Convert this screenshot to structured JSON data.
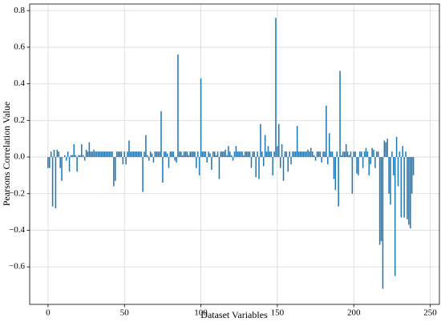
{
  "chart_data": {
    "type": "bar",
    "xlabel": "Dataset Variables",
    "ylabel": "Pearsons Correlation Value",
    "color": "#1f77b4",
    "grid": true,
    "xlim": [
      -12,
      256
    ],
    "ylim": [
      -0.805,
      0.836
    ],
    "xticks": [
      0,
      50,
      100,
      150,
      200,
      250
    ],
    "yticks": [
      {
        "value": -0.6,
        "label": "−0.6"
      },
      {
        "value": -0.4,
        "label": "−0.4"
      },
      {
        "value": -0.2,
        "label": "−0.2"
      },
      {
        "value": 0,
        "label": "0.0"
      },
      0.2,
      0.4,
      0.6,
      0.8
    ],
    "x": [
      0,
      1,
      2,
      3,
      4,
      5,
      6,
      7,
      8,
      9,
      10,
      11,
      12,
      13,
      14,
      15,
      16,
      17,
      18,
      19,
      20,
      21,
      22,
      23,
      24,
      25,
      26,
      27,
      28,
      29,
      30,
      31,
      32,
      33,
      34,
      35,
      36,
      37,
      38,
      39,
      40,
      41,
      42,
      43,
      44,
      45,
      46,
      47,
      48,
      49,
      50,
      51,
      52,
      53,
      54,
      55,
      56,
      57,
      58,
      59,
      60,
      61,
      62,
      63,
      64,
      65,
      66,
      67,
      68,
      69,
      70,
      71,
      72,
      73,
      74,
      75,
      76,
      77,
      78,
      79,
      80,
      81,
      82,
      83,
      84,
      85,
      86,
      87,
      88,
      89,
      90,
      91,
      92,
      93,
      94,
      95,
      96,
      97,
      98,
      99,
      100,
      101,
      102,
      103,
      104,
      105,
      106,
      107,
      108,
      109,
      110,
      111,
      112,
      113,
      114,
      115,
      116,
      117,
      118,
      119,
      120,
      121,
      122,
      123,
      124,
      125,
      126,
      127,
      128,
      129,
      130,
      131,
      132,
      133,
      134,
      135,
      136,
      137,
      138,
      139,
      140,
      141,
      142,
      143,
      144,
      145,
      146,
      147,
      148,
      149,
      150,
      151,
      152,
      153,
      154,
      155,
      156,
      157,
      158,
      159,
      160,
      161,
      162,
      163,
      164,
      165,
      166,
      167,
      168,
      169,
      170,
      171,
      172,
      173,
      174,
      175,
      176,
      177,
      178,
      179,
      180,
      181,
      182,
      183,
      184,
      185,
      186,
      187,
      188,
      189,
      190,
      191,
      192,
      193,
      194,
      195,
      196,
      197,
      198,
      199,
      200,
      201,
      202,
      203,
      204,
      205,
      206,
      207,
      208,
      209,
      210,
      211,
      212,
      213,
      214,
      215,
      216,
      217,
      218,
      219,
      220,
      221,
      222,
      223,
      224,
      225,
      226,
      227,
      228,
      229,
      230,
      231,
      232,
      233,
      234,
      235,
      236,
      237,
      238,
      239
    ],
    "values": [
      -0.06,
      -0.06,
      0.03,
      -0.27,
      0.04,
      -0.28,
      0.04,
      0.03,
      -0.06,
      -0.13,
      0,
      0.01,
      -0.02,
      0.03,
      -0.08,
      0.01,
      0.01,
      0.07,
      0.01,
      -0.08,
      0.01,
      0.01,
      0.07,
      0.01,
      -0.02,
      0.04,
      0.03,
      0.08,
      0.03,
      0.03,
      0.04,
      0.03,
      0.03,
      0.03,
      0.03,
      0.03,
      0.03,
      0.03,
      0.03,
      0.03,
      0.03,
      0.03,
      0.03,
      -0.16,
      -0.13,
      0.03,
      0.03,
      0.03,
      0.03,
      -0.04,
      0.03,
      -0.04,
      0.03,
      0.09,
      0.03,
      0.03,
      0.03,
      0.03,
      0.03,
      0.03,
      0.03,
      0.03,
      -0.19,
      0.03,
      0.12,
      0.01,
      -0.02,
      0.03,
      0.02,
      -0.03,
      0.03,
      0.03,
      0.03,
      0.03,
      0.25,
      -0.14,
      0.03,
      0.03,
      0.02,
      -0.06,
      0.03,
      0.03,
      0.03,
      -0.02,
      -0.03,
      0.56,
      0.03,
      0.03,
      0.01,
      0.03,
      0.03,
      0.03,
      0.01,
      0.03,
      0.03,
      0.03,
      0.03,
      -0.06,
      0.03,
      -0.1,
      0.43,
      0.03,
      0.03,
      0.03,
      -0.03,
      0.03,
      0.02,
      -0.07,
      0.03,
      0.03,
      0.01,
      0.03,
      -0.12,
      0.03,
      0.03,
      0.03,
      0.04,
      0.01,
      0.06,
      0.03,
      0.01,
      -0.02,
      0.03,
      0.06,
      0.03,
      0.03,
      0.03,
      0.03,
      0.01,
      0.03,
      0.03,
      0.03,
      0.03,
      -0.06,
      0.03,
      0.03,
      -0.11,
      0.03,
      -0.12,
      0.18,
      0.03,
      -0.05,
      0.12,
      0.03,
      0.06,
      0.03,
      0.03,
      -0.1,
      0.03,
      0.76,
      0.06,
      0.18,
      -0.06,
      0.07,
      -0.13,
      0.03,
      0.03,
      -0.08,
      0.03,
      -0.04,
      0.03,
      0.03,
      0.03,
      0.17,
      0.03,
      0.03,
      0.03,
      0.03,
      0.03,
      0.03,
      0.04,
      0.03,
      0.05,
      0.03,
      0.01,
      -0.02,
      0.03,
      0.03,
      0.03,
      -0.03,
      0.03,
      0.03,
      0.28,
      -0.04,
      0.13,
      0.03,
      0.03,
      -0.12,
      -0.18,
      0.03,
      -0.27,
      0.47,
      0.01,
      0.03,
      0.03,
      0.07,
      0.03,
      0.01,
      0.03,
      -0.2,
      0.03,
      0.03,
      -0.09,
      -0.1,
      0.03,
      0.03,
      -0.06,
      0.03,
      0.05,
      0.03,
      -0.1,
      -0.04,
      0.05,
      0.04,
      -0.06,
      0.03,
      0.03,
      -0.48,
      -0.46,
      -0.72,
      0.09,
      0.08,
      0.1,
      -0.2,
      -0.26,
      0.03,
      -0.1,
      -0.65,
      0.11,
      -0.16,
      0.03,
      -0.33,
      0.06,
      -0.33,
      0.03,
      -0.34,
      -0.37,
      -0.39,
      -0.2,
      -0.1
    ]
  }
}
